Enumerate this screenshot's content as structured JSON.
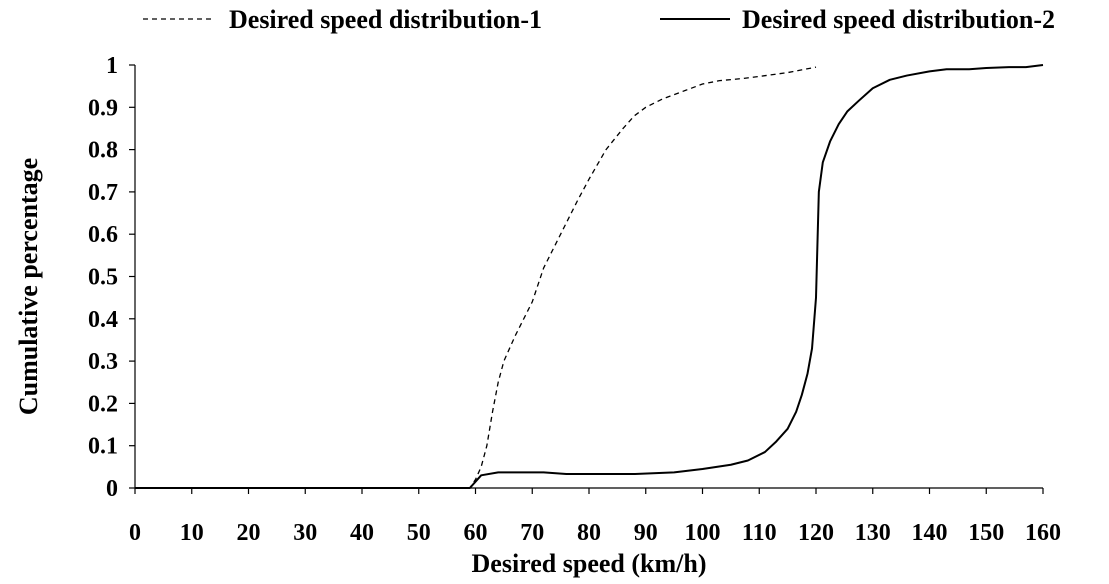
{
  "chart_data": {
    "type": "line",
    "title": "",
    "xlabel": "Desired speed (km/h)",
    "ylabel": "Cumulative percentage",
    "xlim": [
      0,
      160
    ],
    "ylim": [
      0,
      1
    ],
    "x_ticks": [
      "0",
      "10",
      "20",
      "30",
      "40",
      "50",
      "60",
      "70",
      "80",
      "90",
      "100",
      "110",
      "120",
      "130",
      "140",
      "150",
      "160"
    ],
    "y_ticks": [
      "0",
      "0.1",
      "0.2",
      "0.3",
      "0.4",
      "0.5",
      "0.6",
      "0.7",
      "0.8",
      "0.9",
      "1"
    ],
    "grid": false,
    "legend_position": "top",
    "series": [
      {
        "name": "Desired speed distribution-1",
        "style": "dashed",
        "color": "#000000",
        "points": [
          [
            0,
            0
          ],
          [
            59,
            0
          ],
          [
            60,
            0.02
          ],
          [
            61,
            0.05
          ],
          [
            62,
            0.1
          ],
          [
            63,
            0.18
          ],
          [
            64,
            0.25
          ],
          [
            65,
            0.3
          ],
          [
            67,
            0.36
          ],
          [
            70,
            0.44
          ],
          [
            72,
            0.52
          ],
          [
            75,
            0.6
          ],
          [
            78,
            0.68
          ],
          [
            80,
            0.73
          ],
          [
            83,
            0.8
          ],
          [
            86,
            0.85
          ],
          [
            88,
            0.88
          ],
          [
            90,
            0.9
          ],
          [
            93,
            0.92
          ],
          [
            97,
            0.94
          ],
          [
            100,
            0.955
          ],
          [
            103,
            0.963
          ],
          [
            107,
            0.968
          ],
          [
            110,
            0.973
          ],
          [
            115,
            0.982
          ],
          [
            120,
            0.995
          ]
        ]
      },
      {
        "name": "Desired speed distribution-2",
        "style": "solid",
        "color": "#000000",
        "points": [
          [
            0,
            0
          ],
          [
            59,
            0
          ],
          [
            60,
            0.015
          ],
          [
            61,
            0.03
          ],
          [
            64,
            0.037
          ],
          [
            68,
            0.037
          ],
          [
            72,
            0.037
          ],
          [
            76,
            0.033
          ],
          [
            80,
            0.033
          ],
          [
            88,
            0.033
          ],
          [
            95,
            0.037
          ],
          [
            100,
            0.045
          ],
          [
            105,
            0.055
          ],
          [
            108,
            0.065
          ],
          [
            111,
            0.085
          ],
          [
            113,
            0.11
          ],
          [
            115,
            0.14
          ],
          [
            116.5,
            0.18
          ],
          [
            117.5,
            0.22
          ],
          [
            118.5,
            0.27
          ],
          [
            119.3,
            0.33
          ],
          [
            120,
            0.45
          ],
          [
            120.5,
            0.7
          ],
          [
            121.2,
            0.77
          ],
          [
            122.5,
            0.82
          ],
          [
            124,
            0.86
          ],
          [
            125.5,
            0.89
          ],
          [
            127.5,
            0.915
          ],
          [
            130,
            0.945
          ],
          [
            133,
            0.965
          ],
          [
            136,
            0.975
          ],
          [
            140,
            0.985
          ],
          [
            143,
            0.99
          ],
          [
            147,
            0.99
          ],
          [
            150,
            0.993
          ],
          [
            154,
            0.995
          ],
          [
            157,
            0.995
          ],
          [
            160,
            1.0
          ]
        ]
      }
    ]
  }
}
